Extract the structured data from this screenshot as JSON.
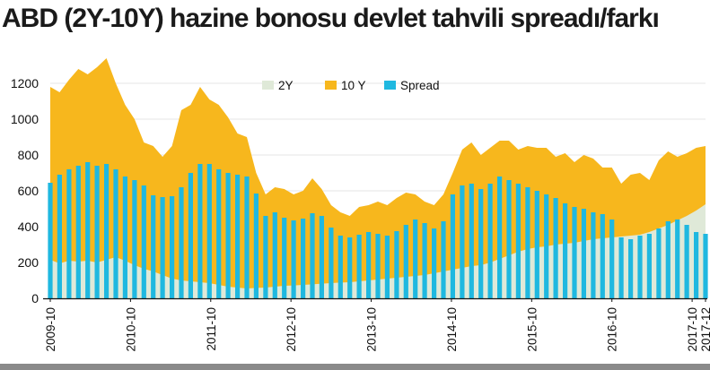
{
  "page": {
    "title": "ABD (2Y-10Y) hazine bonosu devlet tahvili spreadı/farkı"
  },
  "chart_data": {
    "type": "area",
    "title": "ABD (2Y-10Y) hazine bonosu devlet tahvili spreadı/farkı",
    "xlabel": "",
    "ylabel": "",
    "ylim": [
      0,
      1300
    ],
    "yticks": [
      0,
      200,
      400,
      600,
      800,
      1000,
      1200
    ],
    "x_start": "2009-10",
    "x_end": "2017-12",
    "xtick_labels": [
      "2009-10",
      "2010-10",
      "2011-10",
      "2012-10",
      "2013-10",
      "2014-10",
      "2015-10",
      "2016-10",
      "2017-10",
      "2017-12"
    ],
    "legend": {
      "position": "top-right",
      "entries": [
        {
          "name": "2Y",
          "color": "#dfe9d8"
        },
        {
          "name": "10 Y",
          "color": "#f7b71d"
        },
        {
          "name": "Spread",
          "color": "#1fb8e0"
        }
      ]
    },
    "series": [
      {
        "name": "2Y",
        "color": "#dfe9d8",
        "values": [
          215,
          195,
          210,
          205,
          210,
          200,
          215,
          230,
          210,
          185,
          165,
          150,
          130,
          110,
          100,
          95,
          90,
          85,
          75,
          65,
          60,
          55,
          58,
          60,
          65,
          70,
          72,
          75,
          78,
          82,
          85,
          88,
          90,
          95,
          100,
          105,
          110,
          115,
          120,
          125,
          130,
          140,
          150,
          160,
          170,
          180,
          185,
          200,
          220,
          240,
          260,
          275,
          285,
          290,
          300,
          305,
          310,
          320,
          330,
          335,
          340,
          345,
          350,
          355,
          370,
          390,
          410,
          435,
          460,
          490,
          525
        ]
      },
      {
        "name": "10 Y",
        "color": "#f7b71d",
        "values": [
          1180,
          1150,
          1220,
          1280,
          1250,
          1290,
          1340,
          1200,
          1080,
          1000,
          870,
          850,
          790,
          850,
          1050,
          1080,
          1180,
          1110,
          1080,
          1010,
          920,
          900,
          700,
          580,
          620,
          610,
          580,
          600,
          670,
          610,
          520,
          480,
          460,
          510,
          520,
          540,
          520,
          560,
          590,
          580,
          540,
          520,
          580,
          700,
          830,
          870,
          800,
          840,
          880,
          880,
          830,
          850,
          840,
          840,
          790,
          810,
          760,
          800,
          780,
          730,
          730,
          640,
          690,
          700,
          660,
          770,
          820,
          790,
          810,
          840,
          850
        ]
      },
      {
        "name": "Spread",
        "color": "#1fb8e0",
        "values": [
          645,
          690,
          720,
          740,
          760,
          740,
          750,
          720,
          680,
          660,
          630,
          575,
          565,
          570,
          620,
          700,
          750,
          750,
          720,
          700,
          690,
          680,
          585,
          460,
          480,
          450,
          435,
          445,
          475,
          460,
          395,
          350,
          340,
          355,
          370,
          360,
          350,
          375,
          410,
          440,
          420,
          390,
          430,
          580,
          630,
          640,
          610,
          640,
          680,
          660,
          640,
          620,
          600,
          580,
          560,
          530,
          510,
          500,
          480,
          470,
          440,
          340,
          330,
          350,
          360,
          390,
          430,
          440,
          410,
          370,
          360
        ]
      }
    ]
  }
}
